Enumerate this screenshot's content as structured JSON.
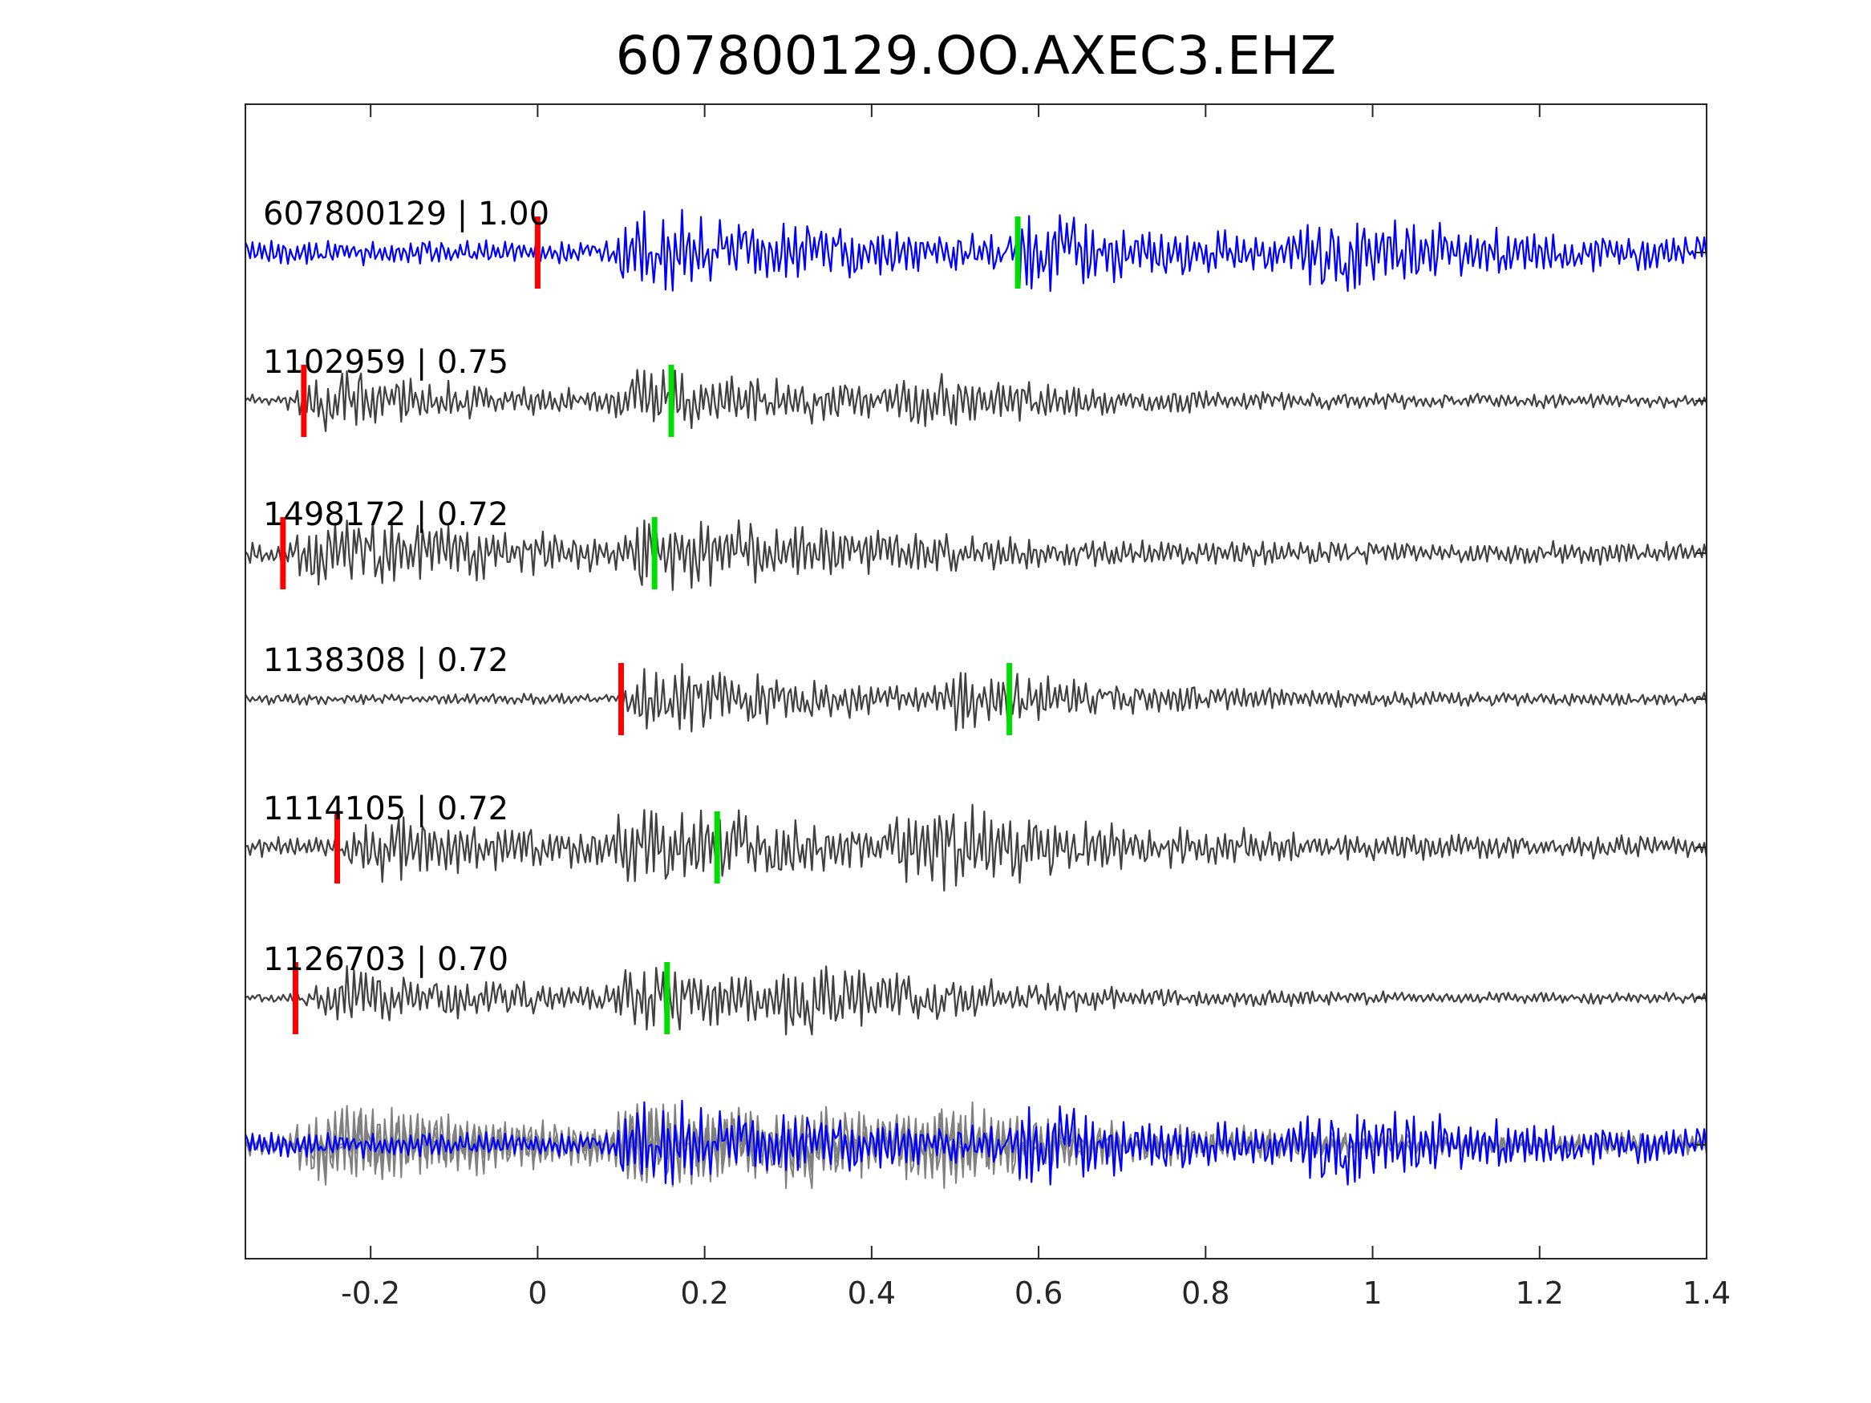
{
  "chart_data": {
    "type": "line",
    "title": "607800129.OO.AXEC3.EHZ",
    "xlabel": "",
    "ylabel": "",
    "xlim": [
      -0.35,
      1.4
    ],
    "x_ticks": [
      -0.2,
      0,
      0.2,
      0.4,
      0.6,
      0.8,
      1,
      1.2,
      1.4
    ],
    "x_tick_labels": [
      "-0.2",
      "0",
      "0.2",
      "0.4",
      "0.6",
      "0.8",
      "1",
      "1.2",
      "1.4"
    ],
    "grid": false,
    "legend": "none",
    "colors": {
      "template": "#0000ff",
      "match": "#404040",
      "overlay": "#808080",
      "p_pick": "#ff0000",
      "s_pick": "#00dd00",
      "axis": "#262626"
    },
    "series": [
      {
        "name": "607800129 | 1.00",
        "id": "607800129",
        "cc": 1.0,
        "label": "607800129 | 1.00",
        "template": true,
        "p_pick": 0.0,
        "s_pick": 0.575,
        "events": [
          {
            "t": 0.12,
            "a": 1.0
          },
          {
            "t": 0.575,
            "a": 0.7
          },
          {
            "t": 0.925,
            "a": 0.65
          }
        ],
        "noise": 0.3
      },
      {
        "name": "1102959 | 0.75",
        "id": "1102959",
        "cc": 0.75,
        "label": "1102959 | 0.75",
        "template": false,
        "p_pick": -0.28,
        "s_pick": 0.16,
        "events": [
          {
            "t": -0.27,
            "a": 0.9
          },
          {
            "t": 0.11,
            "a": 1.0
          },
          {
            "t": 0.44,
            "a": 0.55
          }
        ],
        "noise": 0.2
      },
      {
        "name": "1498172 | 0.72",
        "id": "1498172",
        "cc": 0.72,
        "label": "1498172 | 0.72",
        "template": false,
        "p_pick": -0.305,
        "s_pick": 0.14,
        "events": [
          {
            "t": -0.27,
            "a": 1.0
          },
          {
            "t": 0.13,
            "a": 0.9
          }
        ],
        "noise": 0.3
      },
      {
        "name": "1138308 | 0.72",
        "id": "1138308",
        "cc": 0.72,
        "label": "1138308 | 0.72",
        "template": false,
        "p_pick": 0.1,
        "s_pick": 0.565,
        "events": [
          {
            "t": 0.13,
            "a": 1.0
          },
          {
            "t": 0.5,
            "a": 0.6
          }
        ],
        "noise": 0.15
      },
      {
        "name": "1114105 | 0.72",
        "id": "1114105",
        "cc": 0.72,
        "label": "1114105 | 0.72",
        "template": false,
        "p_pick": -0.24,
        "s_pick": 0.215,
        "events": [
          {
            "t": -0.2,
            "a": 0.7
          },
          {
            "t": 0.11,
            "a": 1.0
          },
          {
            "t": 0.45,
            "a": 0.8
          }
        ],
        "noise": 0.25
      },
      {
        "name": "1126703 | 0.70",
        "id": "1126703",
        "cc": 0.7,
        "label": "1126703 | 0.70",
        "template": false,
        "p_pick": -0.29,
        "s_pick": 0.155,
        "events": [
          {
            "t": -0.25,
            "a": 0.9
          },
          {
            "t": 0.11,
            "a": 1.0
          },
          {
            "t": 0.3,
            "a": 0.6
          }
        ],
        "noise": 0.15
      }
    ],
    "overlay": {
      "name": "stack",
      "description_visible": false
    }
  }
}
